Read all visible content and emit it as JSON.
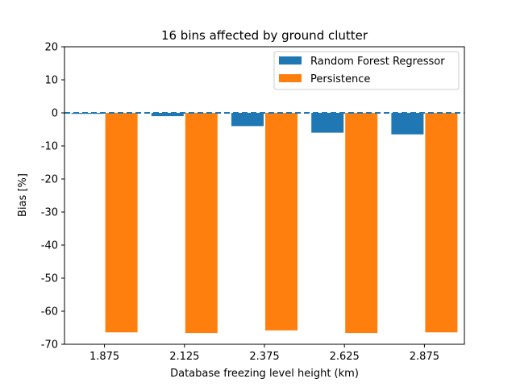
{
  "chart_data": {
    "type": "bar",
    "title": "16 bins affected by ground clutter",
    "xlabel": "Database freezing level height (km)",
    "ylabel": "Bias [%]",
    "categories": [
      "1.875",
      "2.125",
      "2.375",
      "2.625",
      "2.875"
    ],
    "series": [
      {
        "name": "Random Forest Regressor",
        "color": "#1f77b4",
        "values": [
          -0.3,
          -1.0,
          -4.0,
          -6.0,
          -6.5
        ]
      },
      {
        "name": "Persistence",
        "color": "#ff7f0e",
        "values": [
          -66.4,
          -66.6,
          -65.8,
          -66.6,
          -66.4
        ]
      }
    ],
    "ylim": [
      -70,
      20
    ],
    "yticks": [
      -70,
      -60,
      -50,
      -40,
      -30,
      -20,
      -10,
      0,
      10,
      20
    ],
    "reference_line": {
      "y": 0,
      "style": "dashed",
      "color": "#1f77b4"
    },
    "legend": "top-right",
    "grid": false
  }
}
